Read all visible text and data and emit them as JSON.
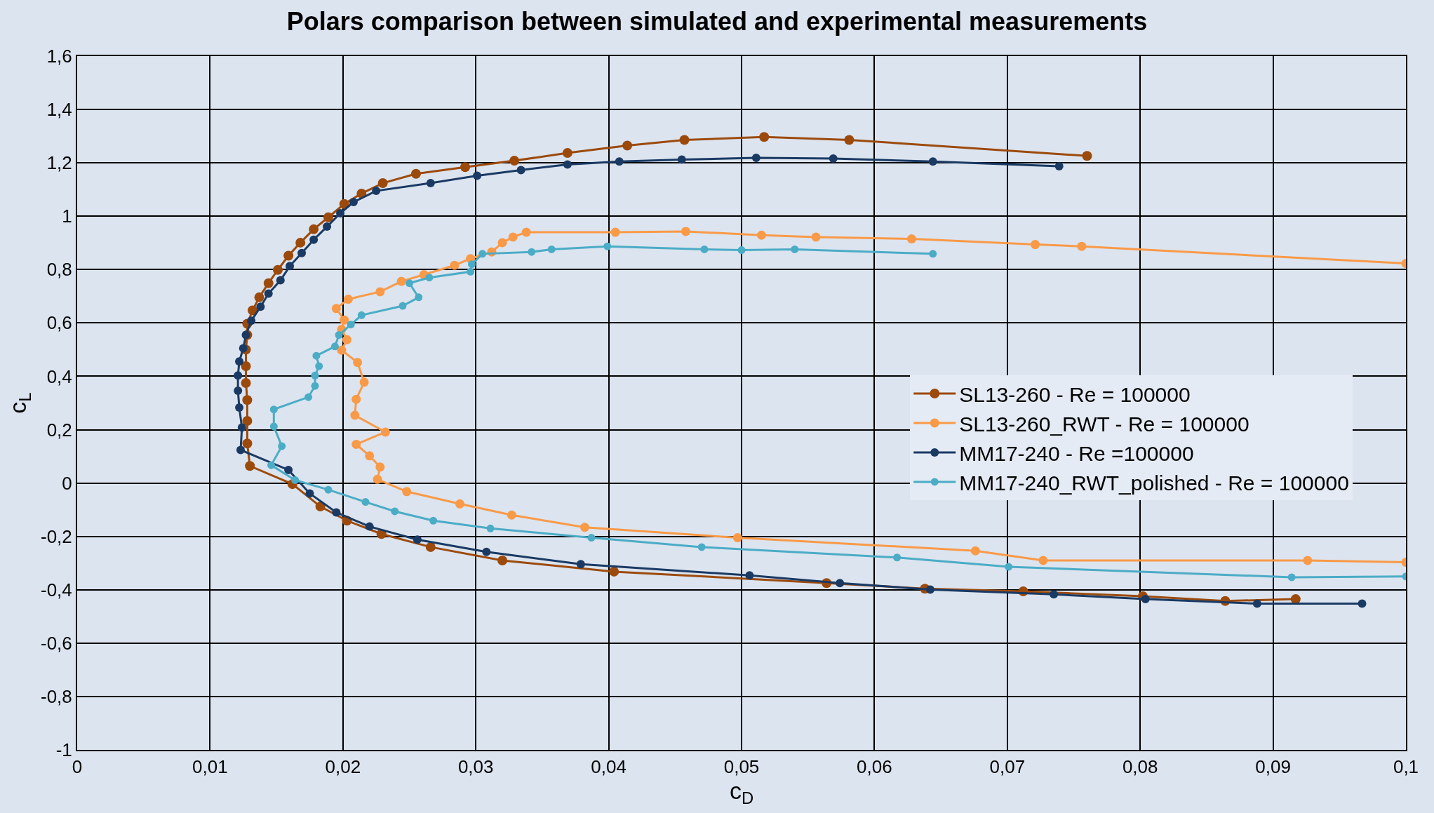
{
  "chart_data": {
    "type": "line",
    "title": "Polars comparison between simulated and experimental measurements",
    "xlabel": "c$_{D}$",
    "ylabel": "c$_{L}$",
    "xlim": [
      0,
      0.1
    ],
    "ylim": [
      -1,
      1.6
    ],
    "xticks": [
      0,
      {
        "value": 0.01,
        "label": "0,01"
      },
      {
        "value": 0.02,
        "label": "0,02"
      },
      {
        "value": 0.03,
        "label": "0,03"
      },
      {
        "value": 0.04,
        "label": "0,04"
      },
      {
        "value": 0.05,
        "label": "0,05"
      },
      {
        "value": 0.06,
        "label": "0,06"
      },
      {
        "value": 0.07,
        "label": "0,07"
      },
      {
        "value": 0.08,
        "label": "0,08"
      },
      {
        "value": 0.09,
        "label": "0,09"
      },
      {
        "value": 0.1,
        "label": "0,1"
      }
    ],
    "yticks": [
      -1,
      {
        "value": -0.8,
        "label": "-0,8"
      },
      {
        "value": -0.6,
        "label": "-0,6"
      },
      {
        "value": -0.4,
        "label": "-0,4"
      },
      {
        "value": -0.2,
        "label": "-0,2"
      },
      0,
      {
        "value": 0.2,
        "label": "0,2"
      },
      {
        "value": 0.4,
        "label": "0,4"
      },
      {
        "value": 0.6,
        "label": "0,6"
      },
      {
        "value": 0.8,
        "label": "0,8"
      },
      1,
      {
        "value": 1.2,
        "label": "1,2"
      },
      {
        "value": 1.4,
        "label": "1,4"
      },
      {
        "value": 1.6,
        "label": "1,6"
      }
    ],
    "grid": true,
    "legend": "right",
    "marker": "circle",
    "line_style": "solid",
    "series": [
      {
        "name": "SL13-260 - Re = 100000",
        "color": "#9c4a0c",
        "x": [
          0.0917,
          0.0864,
          0.0802,
          0.0712,
          0.0638,
          0.0564,
          0.0404,
          0.032,
          0.0266,
          0.0229,
          0.0203,
          0.0183,
          0.0162,
          0.013,
          0.0128,
          0.0128,
          0.0128,
          0.0127,
          0.0127,
          0.0127,
          0.0128,
          0.0128,
          0.0132,
          0.0137,
          0.0144,
          0.0151,
          0.0159,
          0.0168,
          0.0178,
          0.0189,
          0.0201,
          0.0214,
          0.023,
          0.0255,
          0.0292,
          0.0329,
          0.0369,
          0.0414,
          0.0457,
          0.0517,
          0.0581,
          0.076
        ],
        "values": [
          -0.435,
          -0.442,
          -0.424,
          -0.406,
          -0.396,
          -0.375,
          -0.332,
          -0.29,
          -0.24,
          -0.191,
          -0.141,
          -0.088,
          -0.004,
          0.064,
          0.148,
          0.233,
          0.311,
          0.375,
          0.438,
          0.5,
          0.555,
          0.597,
          0.647,
          0.696,
          0.749,
          0.799,
          0.852,
          0.901,
          0.951,
          0.996,
          1.046,
          1.085,
          1.124,
          1.159,
          1.184,
          1.208,
          1.237,
          1.265,
          1.286,
          1.297,
          1.286,
          1.226
        ]
      },
      {
        "name": "SL13-260_RWT - Re = 100000",
        "color": "#f99a48",
        "x": [
          0.1,
          0.0926,
          0.0727,
          0.0676,
          0.0497,
          0.0382,
          0.0327,
          0.0288,
          0.0248,
          0.0226,
          0.0228,
          0.022,
          0.021,
          0.0232,
          0.0209,
          0.021,
          0.0216,
          0.0211,
          0.0199,
          0.0203,
          0.0199,
          0.0201,
          0.0195,
          0.0204,
          0.0228,
          0.0244,
          0.0261,
          0.0284,
          0.0296,
          0.0312,
          0.032,
          0.0328,
          0.0338,
          0.0405,
          0.0458,
          0.0515,
          0.0556,
          0.0628,
          0.0721,
          0.0756,
          0.1
        ],
        "values": [
          -0.297,
          -0.29,
          -0.29,
          -0.254,
          -0.205,
          -0.166,
          -0.12,
          -0.078,
          -0.032,
          0.014,
          0.06,
          0.102,
          0.145,
          0.191,
          0.254,
          0.314,
          0.378,
          0.452,
          0.498,
          0.537,
          0.576,
          0.611,
          0.654,
          0.689,
          0.717,
          0.756,
          0.781,
          0.816,
          0.841,
          0.866,
          0.901,
          0.922,
          0.94,
          0.94,
          0.943,
          0.929,
          0.922,
          0.915,
          0.894,
          0.887,
          0.823
        ]
      },
      {
        "name": "MM17-240 - Re =100000",
        "color": "#1a3a64",
        "x": [
          0.0967,
          0.0888,
          0.0804,
          0.0735,
          0.0642,
          0.0574,
          0.0506,
          0.0379,
          0.0308,
          0.0256,
          0.022,
          0.0195,
          0.0175,
          0.0159,
          0.0123,
          0.0124,
          0.0122,
          0.0121,
          0.0121,
          0.0122,
          0.0125,
          0.0127,
          0.0131,
          0.0138,
          0.0144,
          0.0153,
          0.016,
          0.0169,
          0.0178,
          0.0188,
          0.0198,
          0.0208,
          0.0225,
          0.0266,
          0.0301,
          0.0334,
          0.0369,
          0.0408,
          0.0455,
          0.0511,
          0.0569,
          0.0644,
          0.0739
        ],
        "values": [
          -0.452,
          -0.452,
          -0.435,
          -0.417,
          -0.399,
          -0.375,
          -0.346,
          -0.304,
          -0.258,
          -0.212,
          -0.163,
          -0.11,
          -0.039,
          0.049,
          0.124,
          0.208,
          0.283,
          0.346,
          0.403,
          0.456,
          0.505,
          0.555,
          0.608,
          0.661,
          0.71,
          0.76,
          0.813,
          0.862,
          0.912,
          0.961,
          1.011,
          1.053,
          1.095,
          1.124,
          1.152,
          1.173,
          1.194,
          1.205,
          1.212,
          1.219,
          1.216,
          1.205,
          1.187
        ]
      },
      {
        "name": "MM17-240_RWT_polished - Re = 100000",
        "color": "#4bacc6",
        "x": [
          0.1,
          0.0914,
          0.0701,
          0.0617,
          0.047,
          0.0387,
          0.0311,
          0.0268,
          0.0239,
          0.0217,
          0.0189,
          0.0164,
          0.0146,
          0.0154,
          0.0148,
          0.0148,
          0.0174,
          0.0179,
          0.0179,
          0.0182,
          0.018,
          0.0194,
          0.0197,
          0.0206,
          0.0214,
          0.0245,
          0.0257,
          0.025,
          0.0265,
          0.0296,
          0.0297,
          0.0305,
          0.0342,
          0.0357,
          0.0399,
          0.0472,
          0.05,
          0.054,
          0.0644
        ],
        "values": [
          -0.35,
          -0.353,
          -0.314,
          -0.279,
          -0.24,
          -0.205,
          -0.17,
          -0.141,
          -0.106,
          -0.071,
          -0.025,
          0.011,
          0.067,
          0.138,
          0.212,
          0.276,
          0.322,
          0.364,
          0.403,
          0.438,
          0.477,
          0.512,
          0.555,
          0.594,
          0.629,
          0.664,
          0.696,
          0.749,
          0.77,
          0.792,
          0.82,
          0.859,
          0.866,
          0.876,
          0.887,
          0.876,
          0.873,
          0.876,
          0.859
        ]
      }
    ]
  }
}
